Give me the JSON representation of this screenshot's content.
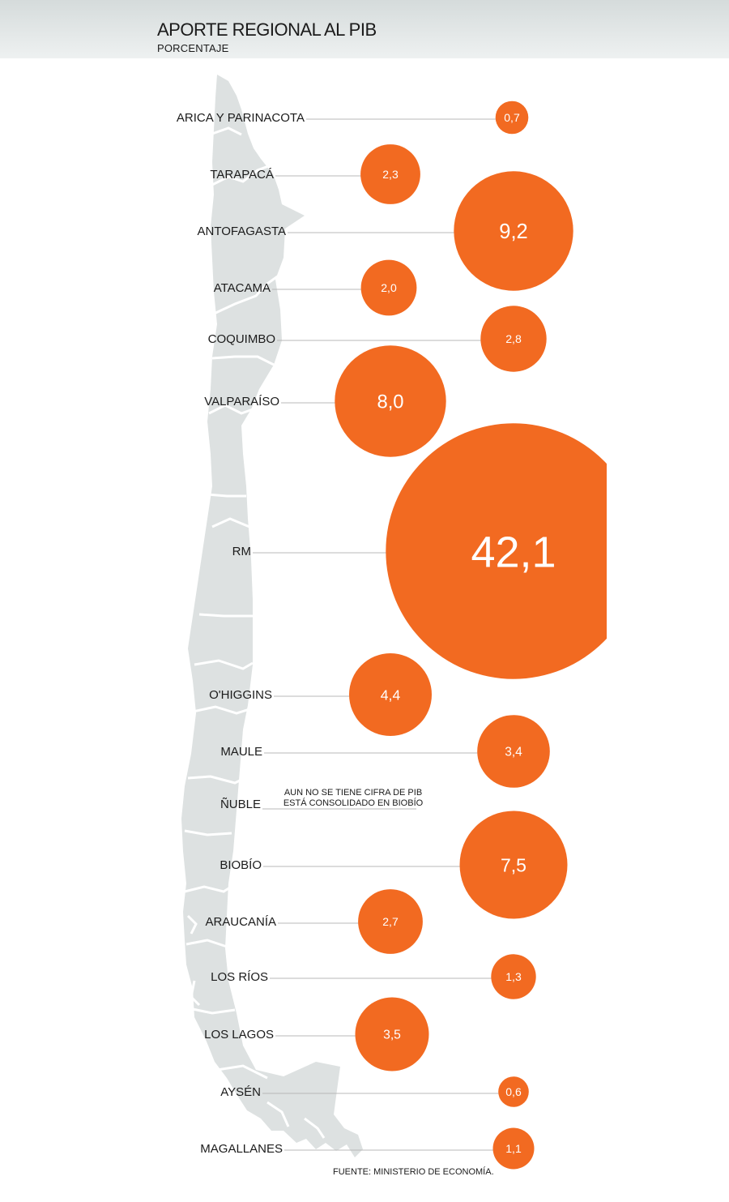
{
  "header": {
    "title": "APORTE REGIONAL AL PIB",
    "subtitle": "PORCENTAJE"
  },
  "source": "FUENTE: MINISTERIO DE ECONOMÍA.",
  "colors": {
    "bubble": "#f26a21",
    "map": "#dde1e1",
    "leader_line": "#b8b8b8",
    "header_band": "#e3e8e8"
  },
  "chart_data": {
    "type": "bubble",
    "title": "APORTE REGIONAL AL PIB",
    "unit": "PORCENTAJE",
    "categories": [
      "ARICA Y PARINACOTA",
      "TARAPACÁ",
      "ANTOFAGASTA",
      "ATACAMA",
      "COQUIMBO",
      "VALPARAÍSO",
      "RM",
      "O'HIGGINS",
      "MAULE",
      "ÑUBLE",
      "BIOBÍO",
      "ARAUCANÍA",
      "LOS RÍOS",
      "LOS LAGOS",
      "AYSÉN",
      "MAGALLANES"
    ],
    "values": [
      0.7,
      2.3,
      9.2,
      2.0,
      2.8,
      8.0,
      42.1,
      4.4,
      3.4,
      null,
      7.5,
      2.7,
      1.3,
      3.5,
      0.6,
      1.1
    ],
    "labels": [
      "0,7",
      "2,3",
      "9,2",
      "2,0",
      "2,8",
      "8,0",
      "42,1",
      "4,4",
      "3,4",
      "",
      "7,5",
      "2,7",
      "1,3",
      "3,5",
      "0,6",
      "1,1"
    ],
    "notes": {
      "ÑUBLE": [
        "AUN NO SE TIENE CIFRA DE PIB",
        "ESTÁ CONSOLIDADO EN BIOBÍO"
      ]
    }
  }
}
